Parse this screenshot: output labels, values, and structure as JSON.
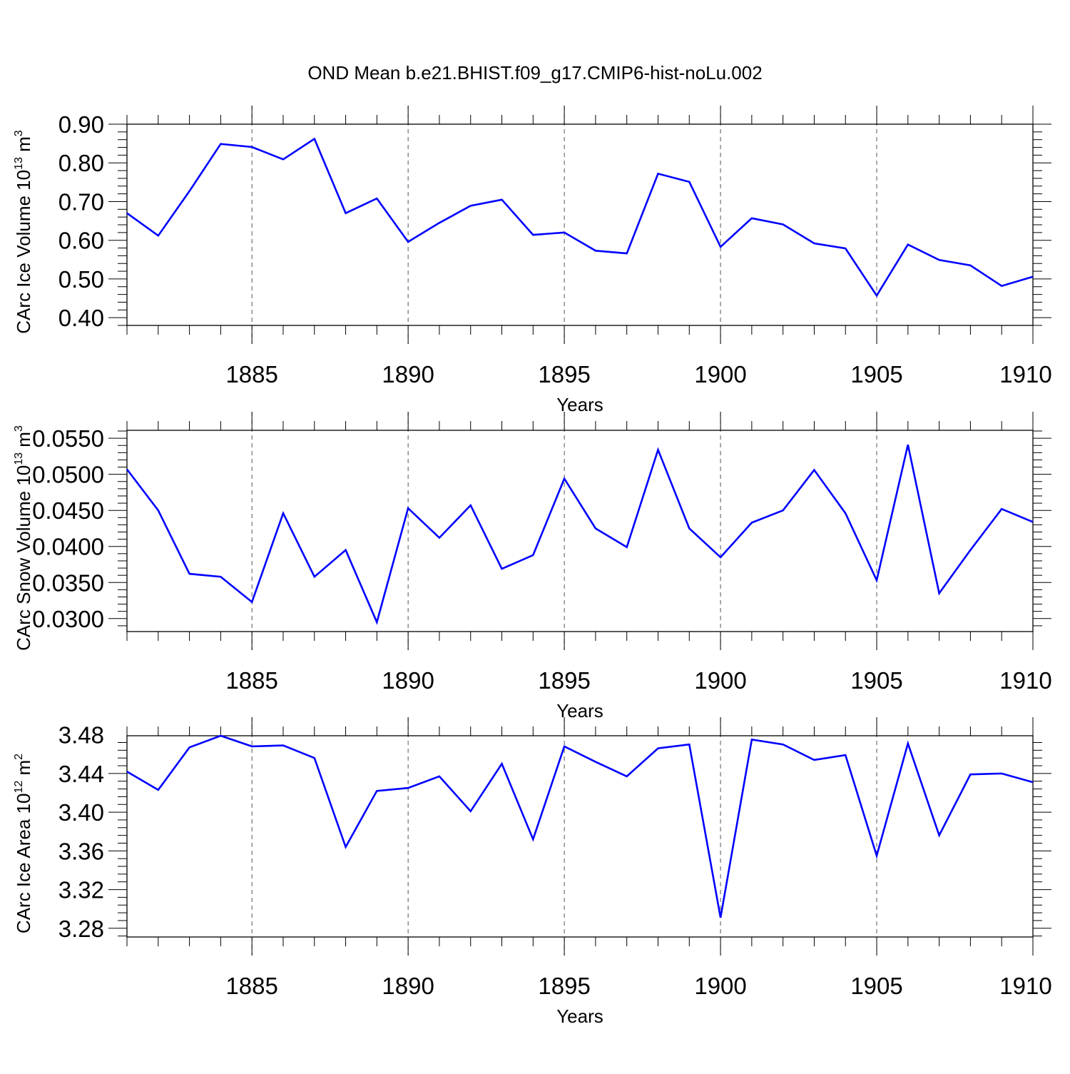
{
  "title": "OND Mean b.e21.BHIST.f09_g17.CMIP6-hist-noLu.002",
  "chart_data": [
    {
      "type": "line",
      "ylabel": "CArc Ice Volume 10",
      "ylabel_exp": "13",
      "ylabel_unit": " m",
      "ylabel_unit_exp": "3",
      "xlabel": "Years",
      "xlim": [
        1881,
        1910
      ],
      "ylim": [
        0.38,
        0.9
      ],
      "yticks": [
        0.4,
        0.5,
        0.6,
        0.7,
        0.8,
        0.9
      ],
      "ytick_labels": [
        "0.40",
        "0.50",
        "0.60",
        "0.70",
        "0.80",
        "0.90"
      ],
      "xticks": [
        1885,
        1890,
        1895,
        1900,
        1905,
        1910
      ],
      "xtick_labels": [
        "1885",
        "1890",
        "1895",
        "1900",
        "1905",
        "1910"
      ],
      "line_color": "#0000ff",
      "x": [
        1881,
        1882,
        1883,
        1884,
        1885,
        1886,
        1887,
        1888,
        1889,
        1890,
        1891,
        1892,
        1893,
        1894,
        1895,
        1896,
        1897,
        1898,
        1899,
        1900,
        1901,
        1902,
        1903,
        1904,
        1905,
        1906,
        1907,
        1908,
        1909,
        1910
      ],
      "values": [
        0.67,
        0.612,
        0.727,
        0.849,
        0.841,
        0.809,
        0.862,
        0.67,
        0.708,
        0.596,
        0.645,
        0.689,
        0.705,
        0.614,
        0.62,
        0.573,
        0.566,
        0.772,
        0.751,
        0.583,
        0.657,
        0.641,
        0.592,
        0.579,
        0.457,
        0.589,
        0.549,
        0.535,
        0.482,
        0.506
      ]
    },
    {
      "type": "line",
      "ylabel": "CArc Snow Volume 10",
      "ylabel_exp": "13",
      "ylabel_unit": " m",
      "ylabel_unit_exp": "3",
      "xlabel": "Years",
      "xlim": [
        1881,
        1910
      ],
      "ylim": [
        0.0282,
        0.0561
      ],
      "yticks": [
        0.03,
        0.035,
        0.04,
        0.045,
        0.05,
        0.055
      ],
      "ytick_labels": [
        "0.0300",
        "0.0350",
        "0.0400",
        "0.0450",
        "0.0500",
        "0.0550"
      ],
      "xticks": [
        1885,
        1890,
        1895,
        1900,
        1905,
        1910
      ],
      "xtick_labels": [
        "1885",
        "1890",
        "1895",
        "1900",
        "1905",
        "1910"
      ],
      "line_color": "#0000ff",
      "x": [
        1881,
        1882,
        1883,
        1884,
        1885,
        1886,
        1887,
        1888,
        1889,
        1890,
        1891,
        1892,
        1893,
        1894,
        1895,
        1896,
        1897,
        1898,
        1899,
        1900,
        1901,
        1902,
        1903,
        1904,
        1905,
        1906,
        1907,
        1908,
        1909,
        1910
      ],
      "values": [
        0.0507,
        0.045,
        0.0362,
        0.0358,
        0.0323,
        0.0446,
        0.0358,
        0.0395,
        0.0295,
        0.0453,
        0.0412,
        0.0457,
        0.0369,
        0.0388,
        0.0494,
        0.0425,
        0.0399,
        0.0534,
        0.0425,
        0.0385,
        0.0433,
        0.045,
        0.0506,
        0.0446,
        0.0353,
        0.0541,
        0.0335,
        0.0395,
        0.0452,
        0.0434
      ]
    },
    {
      "type": "line",
      "ylabel": "CArc Ice Area 10",
      "ylabel_exp": "12",
      "ylabel_unit": " m",
      "ylabel_unit_exp": "2",
      "xlabel": "Years",
      "xlim": [
        1881,
        1910
      ],
      "ylim": [
        3.271,
        3.479
      ],
      "yticks": [
        3.28,
        3.32,
        3.36,
        3.4,
        3.44,
        3.48
      ],
      "ytick_labels": [
        "3.28",
        "3.32",
        "3.36",
        "3.40",
        "3.44",
        "3.48"
      ],
      "xticks": [
        1885,
        1890,
        1895,
        1900,
        1905,
        1910
      ],
      "xtick_labels": [
        "1885",
        "1890",
        "1895",
        "1900",
        "1905",
        "1910"
      ],
      "line_color": "#0000ff",
      "x": [
        1881,
        1882,
        1883,
        1884,
        1885,
        1886,
        1887,
        1888,
        1889,
        1890,
        1891,
        1892,
        1893,
        1894,
        1895,
        1896,
        1897,
        1898,
        1899,
        1900,
        1901,
        1902,
        1903,
        1904,
        1905,
        1906,
        1907,
        1908,
        1909,
        1910
      ],
      "values": [
        3.442,
        3.423,
        3.467,
        3.479,
        3.468,
        3.469,
        3.456,
        3.364,
        3.422,
        3.425,
        3.437,
        3.401,
        3.45,
        3.372,
        3.468,
        3.452,
        3.437,
        3.466,
        3.47,
        3.291,
        3.475,
        3.47,
        3.454,
        3.459,
        3.355,
        3.471,
        3.376,
        3.439,
        3.44,
        3.431
      ]
    }
  ]
}
